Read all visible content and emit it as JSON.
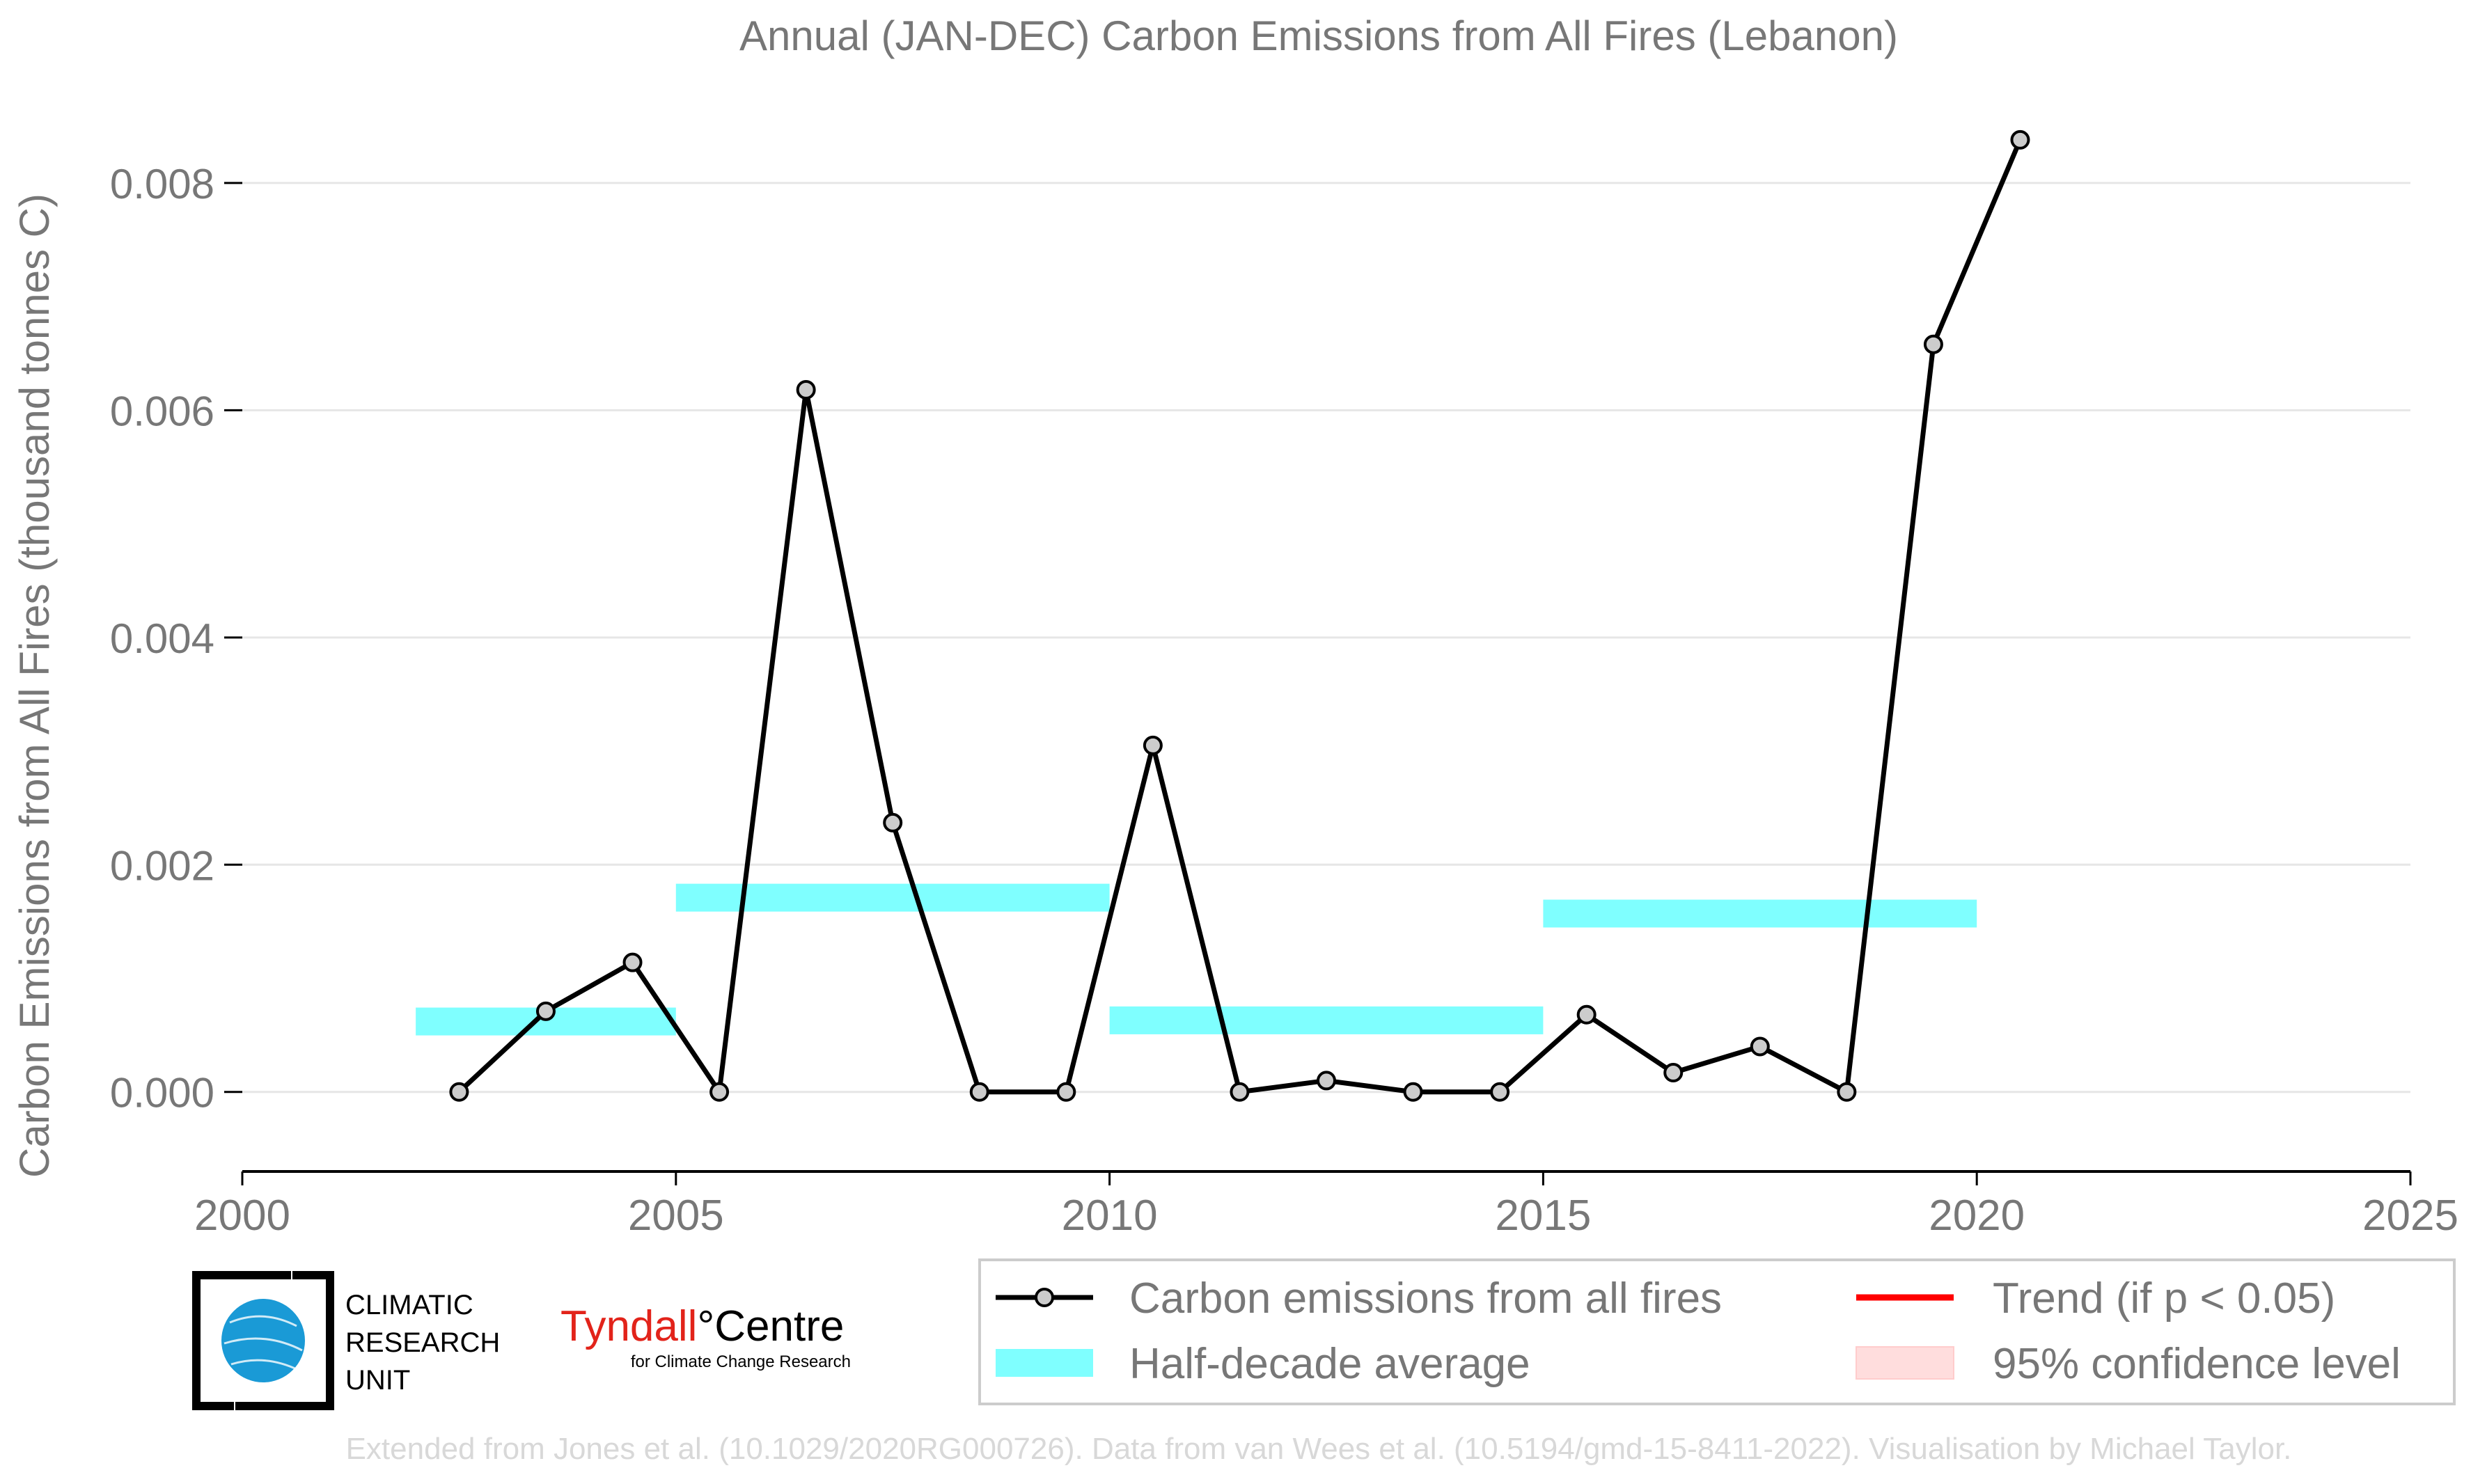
{
  "chart_data": {
    "type": "line",
    "title": "Annual (JAN-DEC) Carbon Emissions from All Fires (Lebanon)",
    "xlabel": "",
    "ylabel": "Carbon Emissions from All Fires (thousand tonnes C)",
    "xlim": [
      2000,
      2025
    ],
    "ylim": [
      -0.0007,
      0.0086
    ],
    "xticks": [
      2000,
      2005,
      2010,
      2015,
      2020,
      2025
    ],
    "xtick_labels": [
      "2000",
      "2005",
      "2010",
      "2015",
      "2020",
      "2025"
    ],
    "yticks": [
      0.0,
      0.002,
      0.004,
      0.006,
      0.008
    ],
    "ytick_labels": [
      "0.000",
      "0.002",
      "0.004",
      "0.006",
      "0.008"
    ],
    "grid": "horizontal",
    "series": [
      {
        "name": "Carbon emissions from all fires",
        "color": "#000000",
        "marker_fill": "#cccccc",
        "x": [
          2002.5,
          2003.5,
          2004.5,
          2005.5,
          2006.5,
          2007.5,
          2008.5,
          2009.5,
          2010.5,
          2011.5,
          2012.5,
          2013.5,
          2014.5,
          2015.5,
          2016.5,
          2017.5,
          2018.5,
          2019.5,
          2020.5
        ],
        "y": [
          0.0,
          0.00071,
          0.00114,
          0.0,
          0.00618,
          0.00237,
          0.0,
          0.0,
          0.00305,
          0.0,
          0.0001,
          0.0,
          0.0,
          0.00068,
          0.00017,
          0.0004,
          0.0,
          0.00658,
          0.00838
        ]
      }
    ],
    "half_decade_average": {
      "name": "Half-decade average",
      "color": "#7fffff",
      "segments": [
        {
          "x_start": 2002,
          "x_end": 2005,
          "y": 0.00062
        },
        {
          "x_start": 2005,
          "x_end": 2010,
          "y": 0.00171
        },
        {
          "x_start": 2010,
          "x_end": 2015,
          "y": 0.00063
        },
        {
          "x_start": 2015,
          "x_end": 2020,
          "y": 0.00157
        }
      ]
    },
    "legend": {
      "placement": "bottom-right",
      "entries": [
        {
          "label": "Carbon emissions from all fires",
          "kind": "line-marker",
          "color": "#000000"
        },
        {
          "label": "Half-decade average",
          "kind": "patch",
          "color": "#7fffff"
        },
        {
          "label": "Trend (if p < 0.05)",
          "kind": "line",
          "color": "#ff0000"
        },
        {
          "label": "95% confidence level",
          "kind": "patch",
          "color": "#ffdddd"
        }
      ]
    }
  },
  "logos": {
    "cru": {
      "lines": [
        "CLIMATIC",
        "RESEARCH",
        "UNIT"
      ]
    },
    "tyndall": {
      "name": "Tyndall",
      "degree": "°",
      "centre": "Centre",
      "tagline": "for Climate Change Research"
    }
  },
  "credit": "Extended from Jones et al. (10.1029/2020RG000726). Data from van Wees et al. (10.5194/gmd-15-8411-2022). Visualisation by Michael Taylor."
}
